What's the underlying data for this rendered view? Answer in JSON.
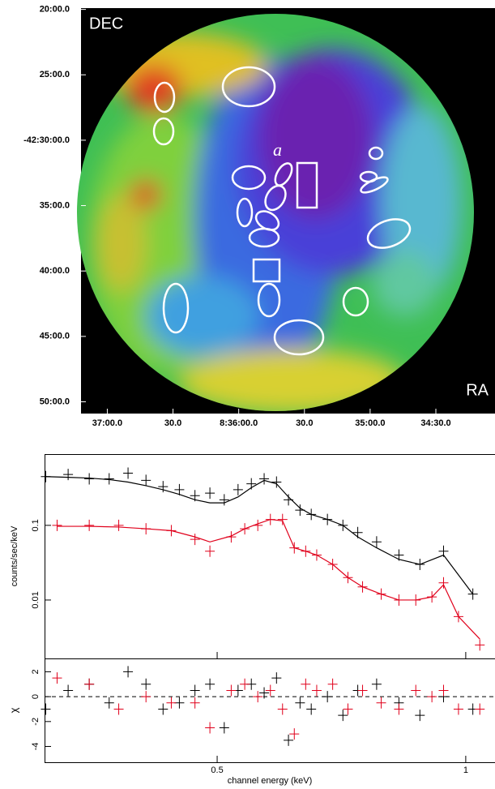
{
  "chart_data": [
    {
      "type": "image",
      "ylabel": "DEC",
      "xlabel": "RA",
      "annotation": "a",
      "xlim": [
        2232,
        2043
      ],
      "ylim": [
        19.9,
        50.9
      ],
      "xticks": [
        {
          "value": 2220,
          "label": "37:00.0"
        },
        {
          "value": 2190,
          "label": "30.0"
        },
        {
          "value": 2160,
          "label": "8:36:00.0"
        },
        {
          "value": 2130,
          "label": "30.0"
        },
        {
          "value": 2100,
          "label": "35:00.0"
        },
        {
          "value": 2070,
          "label": "34:30.0"
        }
      ],
      "yticks": [
        {
          "value": 20,
          "label": "20:00.0"
        },
        {
          "value": 25,
          "label": "25:00.0"
        },
        {
          "value": 30,
          "label": "-42:30:00.0"
        },
        {
          "value": 35,
          "label": "35:00.0"
        },
        {
          "value": 40,
          "label": "40:00.0"
        },
        {
          "value": 45,
          "label": "45:00.0"
        },
        {
          "value": 50,
          "label": "50:00.0"
        }
      ]
    },
    {
      "type": "spectrum",
      "ylabel": "counts/sec/keV",
      "xlabel": "channel energy (keV)",
      "residual_label": "χ",
      "log_x": true,
      "log_y": true,
      "xlim": [
        0.309,
        1.085
      ],
      "ylim": [
        0.00165,
        0.9
      ],
      "rlim": [
        -5.27,
        3.07
      ],
      "xticks": [
        0.5,
        1
      ],
      "yticks": [
        0.1,
        0.01
      ],
      "rticks": [
        -4,
        -2,
        0,
        2
      ],
      "series": [
        {
          "color": "#000000",
          "x": [
            0.31,
            0.33,
            0.35,
            0.37,
            0.39,
            0.41,
            0.43,
            0.45,
            0.47,
            0.49,
            0.51,
            0.53,
            0.55,
            0.57,
            0.59,
            0.61,
            0.63,
            0.65,
            0.68,
            0.71,
            0.74,
            0.78,
            0.83,
            0.88,
            0.94,
            1.02
          ],
          "values": [
            0.45,
            0.48,
            0.42,
            0.42,
            0.5,
            0.4,
            0.33,
            0.3,
            0.25,
            0.27,
            0.22,
            0.3,
            0.36,
            0.42,
            0.38,
            0.22,
            0.16,
            0.14,
            0.12,
            0.1,
            0.08,
            0.06,
            0.04,
            0.03,
            0.045,
            0.012
          ],
          "model": [
            0.45,
            0.44,
            0.43,
            0.41,
            0.38,
            0.34,
            0.3,
            0.26,
            0.22,
            0.2,
            0.2,
            0.24,
            0.32,
            0.4,
            0.36,
            0.24,
            0.17,
            0.14,
            0.12,
            0.1,
            0.07,
            0.05,
            0.035,
            0.03,
            0.04,
            0.012
          ],
          "chi": [
            -1,
            0.5,
            1,
            -0.5,
            2,
            1,
            -1,
            -0.5,
            0.5,
            1,
            -2.5,
            0.5,
            1,
            0.3,
            1.5,
            -3.5,
            -0.5,
            -1,
            0,
            -1.5,
            0.5,
            1,
            -0.5,
            -1.5,
            0,
            -1
          ]
        },
        {
          "color": "#e0001b",
          "x": [
            0.32,
            0.35,
            0.38,
            0.41,
            0.44,
            0.47,
            0.49,
            0.52,
            0.54,
            0.56,
            0.58,
            0.6,
            0.62,
            0.64,
            0.66,
            0.69,
            0.72,
            0.75,
            0.79,
            0.83,
            0.87,
            0.91,
            0.94,
            0.98,
            1.04
          ],
          "values": [
            0.1,
            0.1,
            0.1,
            0.09,
            0.085,
            0.065,
            0.045,
            0.07,
            0.09,
            0.1,
            0.12,
            0.12,
            0.05,
            0.045,
            0.04,
            0.03,
            0.02,
            0.015,
            0.012,
            0.01,
            0.01,
            0.011,
            0.017,
            0.006,
            0.0025
          ],
          "model": [
            0.097,
            0.097,
            0.095,
            0.09,
            0.085,
            0.07,
            0.06,
            0.072,
            0.09,
            0.105,
            0.12,
            0.115,
            0.05,
            0.045,
            0.04,
            0.03,
            0.02,
            0.015,
            0.012,
            0.01,
            0.01,
            0.011,
            0.016,
            0.006,
            0.003
          ],
          "chi": [
            1.5,
            1,
            -1,
            0,
            -0.5,
            -0.5,
            -2.5,
            0.5,
            1,
            0,
            0.5,
            -1,
            -3,
            1,
            0.5,
            1,
            -1,
            0.5,
            -0.5,
            -1,
            0.5,
            0,
            0.5,
            -1,
            -1
          ]
        }
      ]
    }
  ]
}
